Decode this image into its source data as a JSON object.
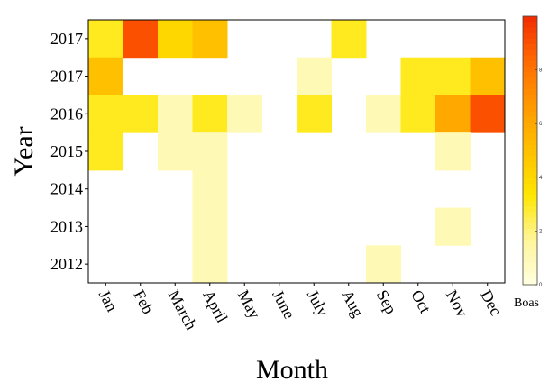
{
  "chart_data": {
    "type": "heatmap",
    "title": "",
    "xlabel": "Month",
    "ylabel": "Year",
    "x_categories": [
      "Jan",
      "Feb",
      "March",
      "April",
      "May",
      "June",
      "July",
      "Aug",
      "Sep",
      "Oct",
      "Nov",
      "Dec"
    ],
    "y_categories": [
      "2017",
      "2017",
      "2016",
      "2015",
      "2014",
      "2013",
      "2012"
    ],
    "values": [
      [
        3,
        9,
        4,
        5,
        null,
        null,
        null,
        3,
        null,
        null,
        null,
        null
      ],
      [
        5,
        null,
        null,
        null,
        null,
        null,
        1,
        null,
        null,
        3,
        3,
        5
      ],
      [
        3,
        3,
        1,
        3,
        1,
        null,
        3,
        null,
        1,
        3,
        6,
        9
      ],
      [
        3,
        null,
        1,
        1,
        null,
        null,
        null,
        null,
        null,
        null,
        1,
        null
      ],
      [
        null,
        null,
        null,
        1,
        null,
        null,
        null,
        null,
        null,
        null,
        null,
        null
      ],
      [
        null,
        null,
        null,
        1,
        null,
        null,
        null,
        null,
        null,
        null,
        1,
        null
      ],
      [
        null,
        null,
        null,
        1,
        null,
        null,
        null,
        null,
        1,
        null,
        null,
        null
      ]
    ],
    "colorbar": {
      "label": "Boas",
      "range": [
        0,
        10
      ],
      "ticks": [
        "0",
        "2",
        "4",
        "6",
        "8"
      ],
      "colors": [
        "#ffffe0",
        "#fff59a",
        "#ffe600",
        "#ffc000",
        "#ff9900",
        "#ff6a00",
        "#f22a00"
      ]
    },
    "grid": false,
    "legend": "right"
  }
}
